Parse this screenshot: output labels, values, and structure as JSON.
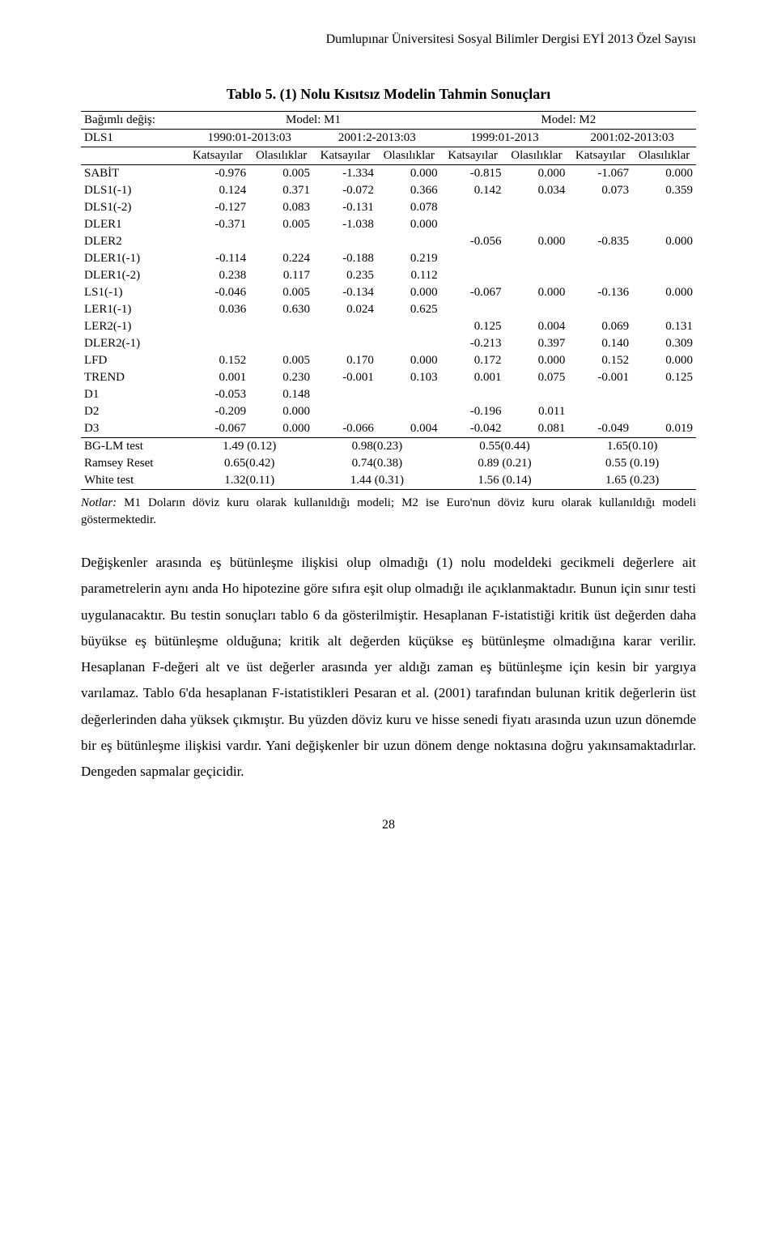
{
  "journal_header": "Dumlupınar Üniversitesi Sosyal Bilimler Dergisi EYİ 2013 Özel Sayısı",
  "table_title": "Tablo 5. (1) Nolu Kısıtsız Modelin Tahmin Sonuçları",
  "colhead": {
    "depvar": "Bağımlı değiş:",
    "m1": "Model: M1",
    "m2": "Model: M2",
    "blank": "DLS1",
    "p1": "1990:01-2013:03",
    "p2": "2001:2-2013:03",
    "p3": "1999:01-2013",
    "p4": "2001:02-2013:03",
    "coef": "Katsayılar",
    "prob": "Olasılıklar"
  },
  "rows": {
    "sabit": {
      "label": "SABİT",
      "v": [
        "-0.976",
        "0.005",
        "-1.334",
        "0.000",
        "-0.815",
        "0.000",
        "-1.067",
        "0.000"
      ]
    },
    "dls1_1": {
      "label": "DLS1(-1)",
      "v": [
        "0.124",
        "0.371",
        "-0.072",
        "0.366",
        "0.142",
        "0.034",
        "0.073",
        "0.359"
      ]
    },
    "dls1_2": {
      "label": "DLS1(-2)",
      "v": [
        "-0.127",
        "0.083",
        "-0.131",
        "0.078",
        "",
        "",
        "",
        ""
      ]
    },
    "dler1": {
      "label": "DLER1",
      "v": [
        "-0.371",
        "0.005",
        "-1.038",
        "0.000",
        "",
        "",
        "",
        ""
      ]
    },
    "dler2": {
      "label": "DLER2",
      "v": [
        "",
        "",
        "",
        "",
        "-0.056",
        "0.000",
        "-0.835",
        "0.000"
      ]
    },
    "dler1_1": {
      "label": "DLER1(-1)",
      "v": [
        "-0.114",
        "0.224",
        "-0.188",
        "0.219",
        "",
        "",
        "",
        ""
      ]
    },
    "dler1_2": {
      "label": "DLER1(-2)",
      "v": [
        "0.238",
        "0.117",
        "0.235",
        "0.112",
        "",
        "",
        "",
        ""
      ]
    },
    "ls1_1": {
      "label": "LS1(-1)",
      "v": [
        "-0.046",
        "0.005",
        "-0.134",
        "0.000",
        "-0.067",
        "0.000",
        "-0.136",
        "0.000"
      ]
    },
    "ler1_1": {
      "label": "LER1(-1)",
      "v": [
        "0.036",
        "0.630",
        "0.024",
        "0.625",
        "",
        "",
        "",
        ""
      ]
    },
    "ler2_1": {
      "label": "LER2(-1)",
      "v": [
        "",
        "",
        "",
        "",
        "0.125",
        "0.004",
        "0.069",
        "0.131"
      ]
    },
    "dler2_1": {
      "label": "DLER2(-1)",
      "v": [
        "",
        "",
        "",
        "",
        "-0.213",
        "0.397",
        "0.140",
        "0.309"
      ]
    },
    "lfd": {
      "label": "LFD",
      "v": [
        "0.152",
        "0.005",
        "0.170",
        "0.000",
        "0.172",
        "0.000",
        "0.152",
        "0.000"
      ]
    },
    "trend": {
      "label": "TREND",
      "v": [
        "0.001",
        "0.230",
        "-0.001",
        "0.103",
        "0.001",
        "0.075",
        "-0.001",
        "0.125"
      ]
    },
    "d1": {
      "label": "D1",
      "v": [
        "-0.053",
        "0.148",
        "",
        "",
        "",
        "",
        "",
        ""
      ]
    },
    "d2": {
      "label": "D2",
      "v": [
        "-0.209",
        "0.000",
        "",
        "",
        "-0.196",
        "0.011",
        "",
        ""
      ]
    },
    "d3": {
      "label": "D3",
      "v": [
        "-0.067",
        "0.000",
        "-0.066",
        "0.004",
        "-0.042",
        "0.081",
        "-0.049",
        "0.019"
      ]
    }
  },
  "diag": {
    "bg": {
      "label": "BG-LM test",
      "v": [
        "1.49 (0.12)",
        "0.98(0.23)",
        "0.55(0.44)",
        "1.65(0.10)"
      ]
    },
    "ramsey": {
      "label": "Ramsey Reset",
      "v": [
        "0.65(0.42)",
        "0.74(0.38)",
        "0.89 (0.21)",
        "0.55 (0.19)"
      ]
    },
    "white": {
      "label": "White test",
      "v": [
        "1.32(0.11)",
        "1.44 (0.31)",
        "1.56 (0.14)",
        "1.65 (0.23)"
      ]
    }
  },
  "notes": {
    "label": "Notlar:",
    "text": " M1 Doların döviz kuru olarak kullanıldığı modeli; M2 ise Euro'nun döviz kuru olarak kullanıldığı modeli göstermektedir."
  },
  "body_text": "Değişkenler arasında eş bütünleşme ilişkisi olup olmadığı (1) nolu modeldeki gecikmeli değerlere ait parametrelerin aynı anda Ho hipotezine göre sıfıra eşit olup olmadığı ile açıklanmaktadır. Bunun için sınır testi uygulanacaktır.  Bu testin sonuçları tablo 6 da gösterilmiştir.  Hesaplanan F-istatistiği kritik üst değerden daha büyükse eş bütünleşme olduğuna; kritik alt değerden küçükse eş bütünleşme olmadığına karar verilir. Hesaplanan F-değeri alt ve üst değerler arasında yer aldığı zaman eş bütünleşme için kesin bir yargıya varılamaz. Tablo 6'da hesaplanan F-istatistikleri Pesaran et al. (2001) tarafından bulunan kritik değerlerin üst değerlerinden daha yüksek çıkmıştır. Bu yüzden döviz kuru ve hisse senedi fiyatı arasında uzun uzun dönemde bir eş bütünleşme ilişkisi vardır. Yani değişkenler bir uzun dönem denge noktasına doğru yakınsamaktadırlar. Dengeden sapmalar geçicidir.",
  "page_num": "28"
}
